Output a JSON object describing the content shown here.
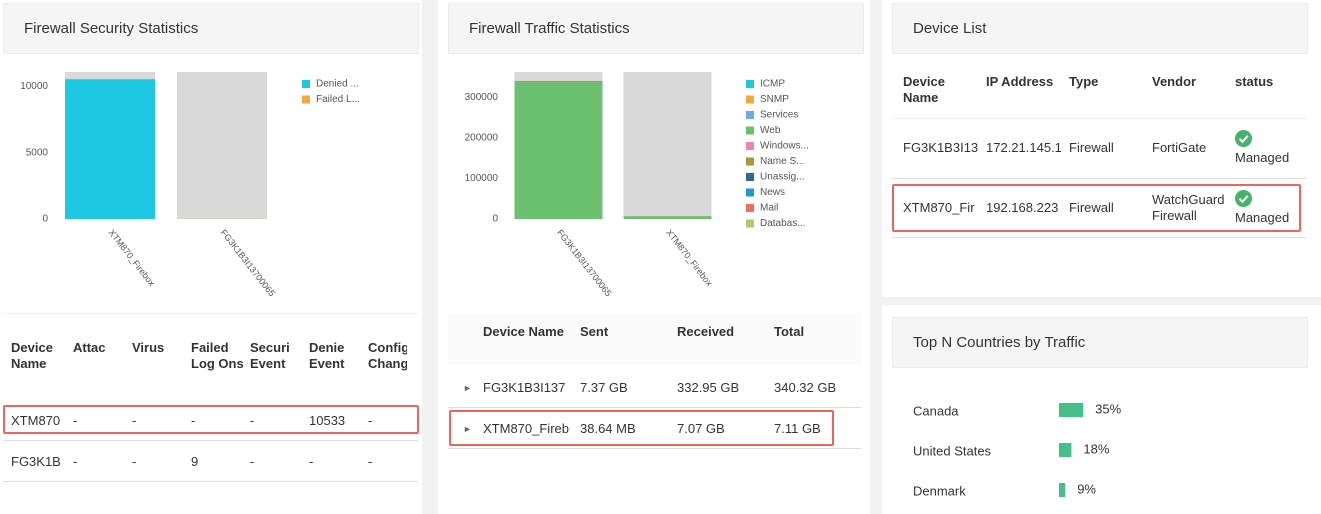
{
  "chart_data": [
    {
      "type": "stacked-bar",
      "title": "Firewall Security Statistics",
      "categories": [
        "XTM870_Firebox",
        "FG3K1B3I13700065"
      ],
      "series": [
        {
          "name": "Denied ...",
          "color": "#1ec8e3",
          "values": [
            10533,
            0
          ]
        },
        {
          "name": "Failed L...",
          "color": "#f5a742",
          "values": [
            0,
            9
          ]
        }
      ],
      "ylim": [
        0,
        11000
      ],
      "yticks": [
        0,
        5000,
        10000
      ]
    },
    {
      "type": "stacked-bar",
      "title": "Firewall Traffic Statistics",
      "categories": [
        "FG3K1B3I13700065",
        "XTM870_Firebox"
      ],
      "series": [
        {
          "name": "ICMP",
          "color": "#1ec8e3",
          "values": [
            0,
            0
          ]
        },
        {
          "name": "SNMP",
          "color": "#f5a742",
          "values": [
            0,
            0
          ]
        },
        {
          "name": "Services",
          "color": "#6aaee0",
          "values": [
            0,
            0
          ]
        },
        {
          "name": "Web",
          "color": "#6cc070",
          "values": [
            337500,
            6900
          ]
        },
        {
          "name": "Windows...",
          "color": "#f080b0",
          "values": [
            0,
            0
          ]
        },
        {
          "name": "Name S...",
          "color": "#a89a32",
          "values": [
            0,
            0
          ]
        },
        {
          "name": "Unassig...",
          "color": "#2e6c8c",
          "values": [
            0,
            0
          ]
        },
        {
          "name": "News",
          "color": "#1a9bd7",
          "values": [
            0,
            0
          ]
        },
        {
          "name": "Mail",
          "color": "#f07060",
          "values": [
            2800,
            200
          ]
        },
        {
          "name": "Databas...",
          "color": "#a8cc70",
          "values": [
            0,
            0
          ]
        }
      ],
      "ylim": [
        0,
        360000
      ],
      "yticks": [
        0,
        100000,
        200000,
        300000
      ]
    },
    {
      "type": "hbar",
      "title": "Top N Countries by Traffic",
      "categories": [
        "Canada",
        "United States",
        "Denmark"
      ],
      "values": [
        35,
        18,
        9
      ],
      "value_labels": [
        "35%",
        "18%",
        "9%"
      ],
      "color": "#45c08a"
    }
  ],
  "security_table": {
    "columns": [
      "Device Name",
      "Attac",
      "Virus",
      "Failed Log Ons",
      "Securi Event",
      "Denie Event",
      "Config Chang"
    ],
    "rows": [
      [
        "XTM870",
        "-",
        "-",
        "-",
        "-",
        "10533",
        "-"
      ],
      [
        "FG3K1B",
        "-",
        "-",
        "9",
        "-",
        "-",
        "-"
      ]
    ]
  },
  "traffic_table": {
    "columns": [
      "Device Name",
      "Sent",
      "Received",
      "Total"
    ],
    "rows": [
      [
        "FG3K1B3I137",
        "7.37 GB",
        "332.95 GB",
        "340.32 GB"
      ],
      [
        "XTM870_Fireb",
        "38.64 MB",
        "7.07 GB",
        "7.11 GB"
      ]
    ]
  },
  "device_list": {
    "title": "Device List",
    "columns": [
      "Device Name",
      "IP Address",
      "Type",
      "Vendor",
      "status"
    ],
    "rows": [
      [
        "FG3K1B3I13",
        "172.21.145.1",
        "Firewall",
        "FortiGate",
        "Managed"
      ],
      [
        "XTM870_Fir",
        "192.168.223",
        "Firewall",
        "WatchGuard Firewall",
        "Managed"
      ]
    ]
  }
}
